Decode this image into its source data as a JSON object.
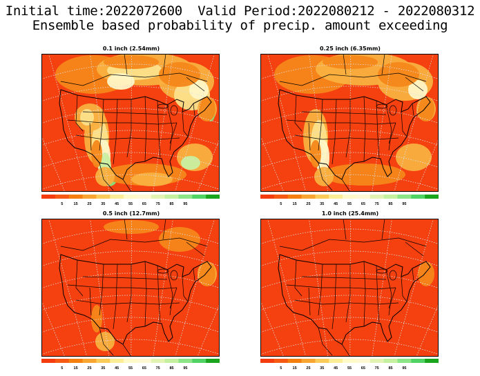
{
  "header": {
    "line1": "Initial time:2022072600  Valid Period:2022080212 - 2022080312",
    "line2": "Ensemble based probability of precip. amount exceeding"
  },
  "colorbar": {
    "labels": [
      "5",
      "15",
      "25",
      "35",
      "45",
      "55",
      "65",
      "75",
      "85",
      "95"
    ],
    "colors": [
      "#f53c0f",
      "#f65a14",
      "#f5800f",
      "#f8a532",
      "#fbcc5a",
      "#fcee96",
      "#fffac8",
      "#fff8d2",
      "#e2f3b4",
      "#c4f0a0",
      "#8ce687",
      "#50d264",
      "#19a51e"
    ]
  },
  "panels": [
    {
      "id": "p1",
      "title": "0.1 inch (2.54mm)",
      "wet_level": 1.0
    },
    {
      "id": "p2",
      "title": "0.25 inch (6.35mm)",
      "wet_level": 0.55
    },
    {
      "id": "p3",
      "title": "0.5 inch (12.7mm)",
      "wet_level": 0.22
    },
    {
      "id": "p4",
      "title": "1.0 inch (25.4mm)",
      "wet_level": 0.08
    }
  ],
  "map_colors": {
    "base": "#f5400f",
    "orange": "#f6871a",
    "light_orange": "#f9b040",
    "yellow": "#fbe08a",
    "cream": "#fff6c6",
    "light_green": "#c8ef9f",
    "green": "#86e07e",
    "dark_green": "#2fb43a",
    "grid": "#dddddd",
    "border": "#000000"
  }
}
